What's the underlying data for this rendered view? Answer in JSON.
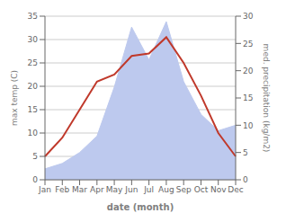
{
  "chart_data": {
    "type": "line",
    "categories": [
      "Jan",
      "Feb",
      "Mar",
      "Apr",
      "May",
      "Jun",
      "Jul",
      "Aug",
      "Sep",
      "Oct",
      "Nov",
      "Dec"
    ],
    "xlabel": "date (month)",
    "ylabel": "max temp (C)",
    "y2label": "med. precipitation (kg/m2)",
    "ylim": [
      0,
      35
    ],
    "yticks": [
      0,
      5,
      10,
      15,
      20,
      25,
      30,
      35
    ],
    "y2lim": [
      0,
      30
    ],
    "y2ticks": [
      0,
      5,
      10,
      15,
      20,
      25,
      30
    ],
    "grid": true,
    "series": [
      {
        "type": "area",
        "axis": "y2",
        "color": "#bdc9ee",
        "values": [
          2,
          3,
          5,
          8,
          17,
          28,
          22,
          29,
          18,
          12,
          9,
          10
        ]
      },
      {
        "type": "line",
        "color": "#c0392b",
        "values": [
          5,
          9,
          15,
          21,
          22.5,
          26.5,
          27,
          30.5,
          25,
          18,
          10,
          5
        ]
      }
    ]
  }
}
